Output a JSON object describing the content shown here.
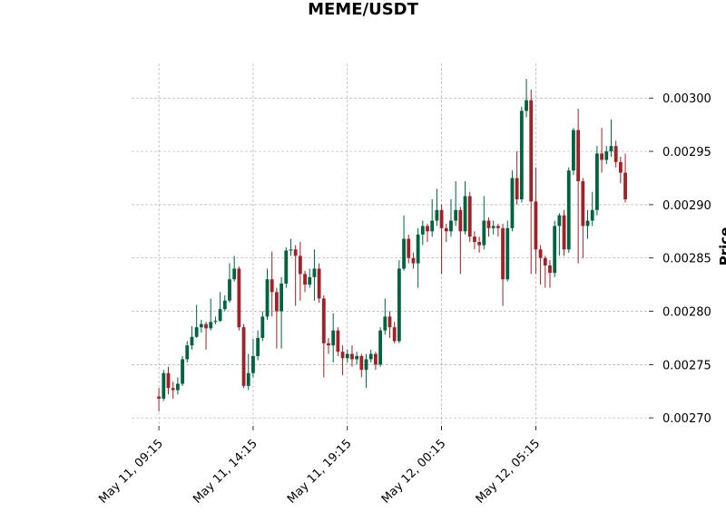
{
  "chart_data": {
    "type": "candlestick",
    "title": "MEME/USDT",
    "y_label": "Price",
    "categories": [
      "May 11, 09:15",
      null,
      null,
      null,
      null,
      null,
      null,
      null,
      null,
      null,
      null,
      null,
      null,
      null,
      null,
      null,
      null,
      null,
      null,
      null,
      "May 11, 14:15",
      null,
      null,
      null,
      null,
      null,
      null,
      null,
      null,
      null,
      null,
      null,
      null,
      null,
      null,
      null,
      null,
      null,
      null,
      null,
      "May 11, 19:15",
      null,
      null,
      null,
      null,
      null,
      null,
      null,
      null,
      null,
      null,
      null,
      null,
      null,
      null,
      null,
      null,
      null,
      null,
      null,
      "May 12, 00:15",
      null,
      null,
      null,
      null,
      null,
      null,
      null,
      null,
      null,
      null,
      null,
      null,
      null,
      null,
      null,
      null,
      null,
      null,
      null,
      "May 12, 05:15",
      null,
      null,
      null,
      null,
      null,
      null,
      null,
      null,
      null,
      null,
      null,
      null,
      null,
      null,
      null,
      null,
      null,
      null,
      null
    ],
    "up_color": "#006340",
    "down_color": "#a02128",
    "grid": true,
    "xlim": [
      -5.8,
      104
    ],
    "xticks": [
      0,
      20,
      40,
      60,
      80
    ],
    "ylim": [
      0.0026925,
      0.0030325
    ],
    "yticks": [
      {
        "value": 0.0027,
        "label": "0.00270"
      },
      0.00275,
      {
        "value": 0.0028,
        "label": "0.00280"
      },
      0.00285,
      {
        "value": 0.0029,
        "label": "0.00290"
      },
      0.00295,
      {
        "value": 0.003,
        "label": "0.00300"
      }
    ],
    "open": [
      0.00272,
      0.002718,
      0.002742,
      0.002728,
      0.002726,
      0.002732,
      0.002755,
      0.002768,
      0.002776,
      0.002785,
      0.002788,
      0.002784,
      0.00279,
      0.002791,
      0.002802,
      0.00281,
      0.00283,
      0.00284,
      0.002785,
      0.00273,
      0.002742,
      0.002758,
      0.002775,
      0.002795,
      0.00283,
      0.002818,
      0.0028,
      0.002826,
      0.002857,
      0.002858,
      0.002852,
      0.002835,
      0.002825,
      0.002832,
      0.00284,
      0.002812,
      0.00277,
      0.002768,
      0.002782,
      0.002762,
      0.002756,
      0.00276,
      0.002755,
      0.002758,
      0.002745,
      0.002755,
      0.00276,
      0.00275,
      0.002782,
      0.002795,
      0.002785,
      0.002772,
      0.00284,
      0.002868,
      0.00285,
      0.002845,
      0.002872,
      0.00288,
      0.002875,
      0.002885,
      0.002895,
      0.002878,
      0.002875,
      0.002885,
      0.002895,
      0.002875,
      0.002908,
      0.00287,
      0.002865,
      0.002862,
      0.002885,
      0.002878,
      0.00288,
      0.002878,
      0.00283,
      0.002878,
      0.002925,
      0.002905,
      0.002988,
      0.002998,
      0.002903,
      0.002858,
      0.00285,
      0.002843,
      0.002836,
      0.00288,
      0.00289,
      0.002858,
      0.002932,
      0.00297,
      0.002922,
      0.00288,
      0.002885,
      0.002895,
      0.002948,
      0.002942,
      0.00295,
      0.002955,
      0.00294,
      0.00293
    ],
    "high": [
      0.002728,
      0.002745,
      0.002748,
      0.002734,
      0.002738,
      0.002758,
      0.002772,
      0.002786,
      0.002806,
      0.002792,
      0.00279,
      0.002812,
      0.002795,
      0.002818,
      0.002815,
      0.002845,
      0.002852,
      0.002842,
      0.002788,
      0.00276,
      0.002774,
      0.002782,
      0.0028,
      0.00284,
      0.002856,
      0.002822,
      0.002832,
      0.00286,
      0.002868,
      0.002862,
      0.002865,
      0.002838,
      0.00284,
      0.002858,
      0.002845,
      0.002815,
      0.002775,
      0.002798,
      0.002785,
      0.002768,
      0.002764,
      0.002768,
      0.002762,
      0.00276,
      0.00276,
      0.002764,
      0.002762,
      0.002785,
      0.002812,
      0.0028,
      0.00279,
      0.002848,
      0.00289,
      0.002872,
      0.002855,
      0.002878,
      0.002885,
      0.002882,
      0.002905,
      0.002915,
      0.0029,
      0.002882,
      0.002905,
      0.002922,
      0.002898,
      0.002922,
      0.002912,
      0.002875,
      0.00287,
      0.002908,
      0.002888,
      0.002885,
      0.002882,
      0.002882,
      0.002885,
      0.002932,
      0.00295,
      0.002992,
      0.003018,
      0.003008,
      0.002935,
      0.002862,
      0.002852,
      0.002848,
      0.002885,
      0.002892,
      0.002895,
      0.002935,
      0.002972,
      0.00299,
      0.002925,
      0.002895,
      0.002912,
      0.002955,
      0.002972,
      0.002955,
      0.00298,
      0.00296,
      0.002945,
      0.002948
    ],
    "low": [
      0.002706,
      0.002716,
      0.002722,
      0.002718,
      0.002722,
      0.00273,
      0.002752,
      0.002764,
      0.002775,
      0.00278,
      0.002764,
      0.002782,
      0.002788,
      0.00279,
      0.0028,
      0.002808,
      0.002828,
      0.002782,
      0.002728,
      0.002726,
      0.002738,
      0.002754,
      0.002772,
      0.002792,
      0.002795,
      0.002765,
      0.002765,
      0.002822,
      0.002852,
      0.002805,
      0.00281,
      0.002818,
      0.002822,
      0.00281,
      0.002808,
      0.002738,
      0.00276,
      0.002752,
      0.002758,
      0.00274,
      0.002752,
      0.002748,
      0.00275,
      0.002738,
      0.002728,
      0.002752,
      0.002745,
      0.002748,
      0.002778,
      0.002775,
      0.00277,
      0.00277,
      0.002838,
      0.002845,
      0.00284,
      0.002822,
      0.002862,
      0.002865,
      0.00287,
      0.00288,
      0.002835,
      0.002865,
      0.00287,
      0.00288,
      0.002835,
      0.002872,
      0.002865,
      0.002858,
      0.002855,
      0.002858,
      0.00287,
      0.002872,
      0.00287,
      0.002805,
      0.002828,
      0.002875,
      0.0029,
      0.002902,
      0.002982,
      0.002835,
      0.002835,
      0.002825,
      0.002822,
      0.002822,
      0.002832,
      0.002852,
      0.002852,
      0.002855,
      0.002928,
      0.002845,
      0.00285,
      0.002868,
      0.00288,
      0.00289,
      0.00293,
      0.002938,
      0.002945,
      0.002935,
      0.00292,
      0.002902
    ],
    "close": [
      0.002718,
      0.002742,
      0.002728,
      0.002726,
      0.002732,
      0.002755,
      0.002768,
      0.002776,
      0.002785,
      0.002788,
      0.002784,
      0.00279,
      0.002791,
      0.002802,
      0.00281,
      0.00283,
      0.00284,
      0.002785,
      0.00273,
      0.002742,
      0.002758,
      0.002775,
      0.002795,
      0.00283,
      0.002818,
      0.0028,
      0.002826,
      0.002857,
      0.002858,
      0.002852,
      0.002835,
      0.002825,
      0.002832,
      0.00284,
      0.002812,
      0.00277,
      0.002768,
      0.002782,
      0.002762,
      0.002756,
      0.00276,
      0.002755,
      0.002758,
      0.002745,
      0.002755,
      0.00276,
      0.00275,
      0.002782,
      0.002795,
      0.002785,
      0.002772,
      0.00284,
      0.002868,
      0.00285,
      0.002845,
      0.002872,
      0.00288,
      0.002875,
      0.002885,
      0.002895,
      0.002878,
      0.002875,
      0.002885,
      0.002895,
      0.002875,
      0.002908,
      0.00287,
      0.002865,
      0.002862,
      0.002885,
      0.002878,
      0.00288,
      0.002878,
      0.00283,
      0.002878,
      0.002925,
      0.002905,
      0.002988,
      0.002998,
      0.002903,
      0.002858,
      0.00285,
      0.002843,
      0.002836,
      0.00288,
      0.00289,
      0.002858,
      0.002932,
      0.00297,
      0.002922,
      0.00288,
      0.002885,
      0.002895,
      0.002948,
      0.002942,
      0.00295,
      0.002955,
      0.00294,
      0.00293,
      0.002905
    ]
  }
}
